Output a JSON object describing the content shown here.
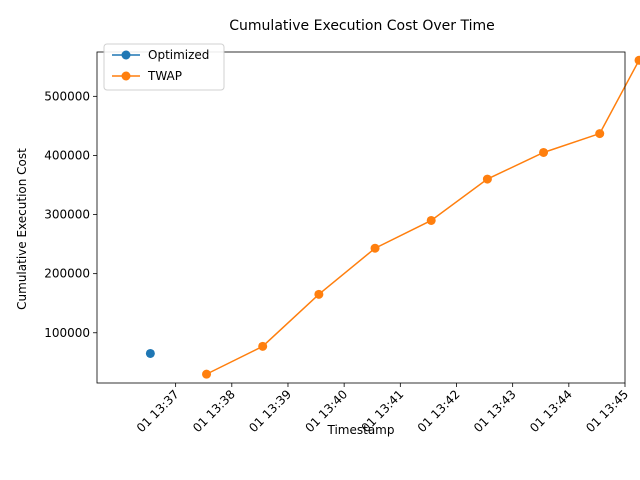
{
  "chart_data": {
    "type": "line",
    "title": "Cumulative Execution Cost Over Time",
    "xlabel": "Timestamp",
    "ylabel": "Cumulative Execution Cost",
    "x_unit": "minutes",
    "xlim": [
      5.6,
      15.0
    ],
    "ylim": [
      15000,
      575000
    ],
    "x_ticks": [
      {
        "value": 7,
        "label": "01 13:37"
      },
      {
        "value": 8,
        "label": "01 13:38"
      },
      {
        "value": 9,
        "label": "01 13:39"
      },
      {
        "value": 10,
        "label": "01 13:40"
      },
      {
        "value": 11,
        "label": "01 13:41"
      },
      {
        "value": 12,
        "label": "01 13:42"
      },
      {
        "value": 13,
        "label": "01 13:43"
      },
      {
        "value": 14,
        "label": "01 13:44"
      },
      {
        "value": 15,
        "label": "01 13:45"
      }
    ],
    "y_ticks": [
      {
        "value": 100000,
        "label": "100000"
      },
      {
        "value": 200000,
        "label": "200000"
      },
      {
        "value": 300000,
        "label": "300000"
      },
      {
        "value": 400000,
        "label": "400000"
      },
      {
        "value": 500000,
        "label": "500000"
      }
    ],
    "legend_position": "top-left",
    "series": [
      {
        "name": "Optimized",
        "color": "#1f77b4",
        "x": [
          6.55
        ],
        "y": [
          65000
        ]
      },
      {
        "name": "TWAP",
        "color": "#ff7f0e",
        "x": [
          7.55,
          8.55,
          9.55,
          10.55,
          11.55,
          12.55,
          13.55,
          14.55,
          15.25
        ],
        "y": [
          30000,
          77000,
          165000,
          243000,
          290000,
          360000,
          405000,
          437000,
          561000
        ]
      }
    ]
  }
}
